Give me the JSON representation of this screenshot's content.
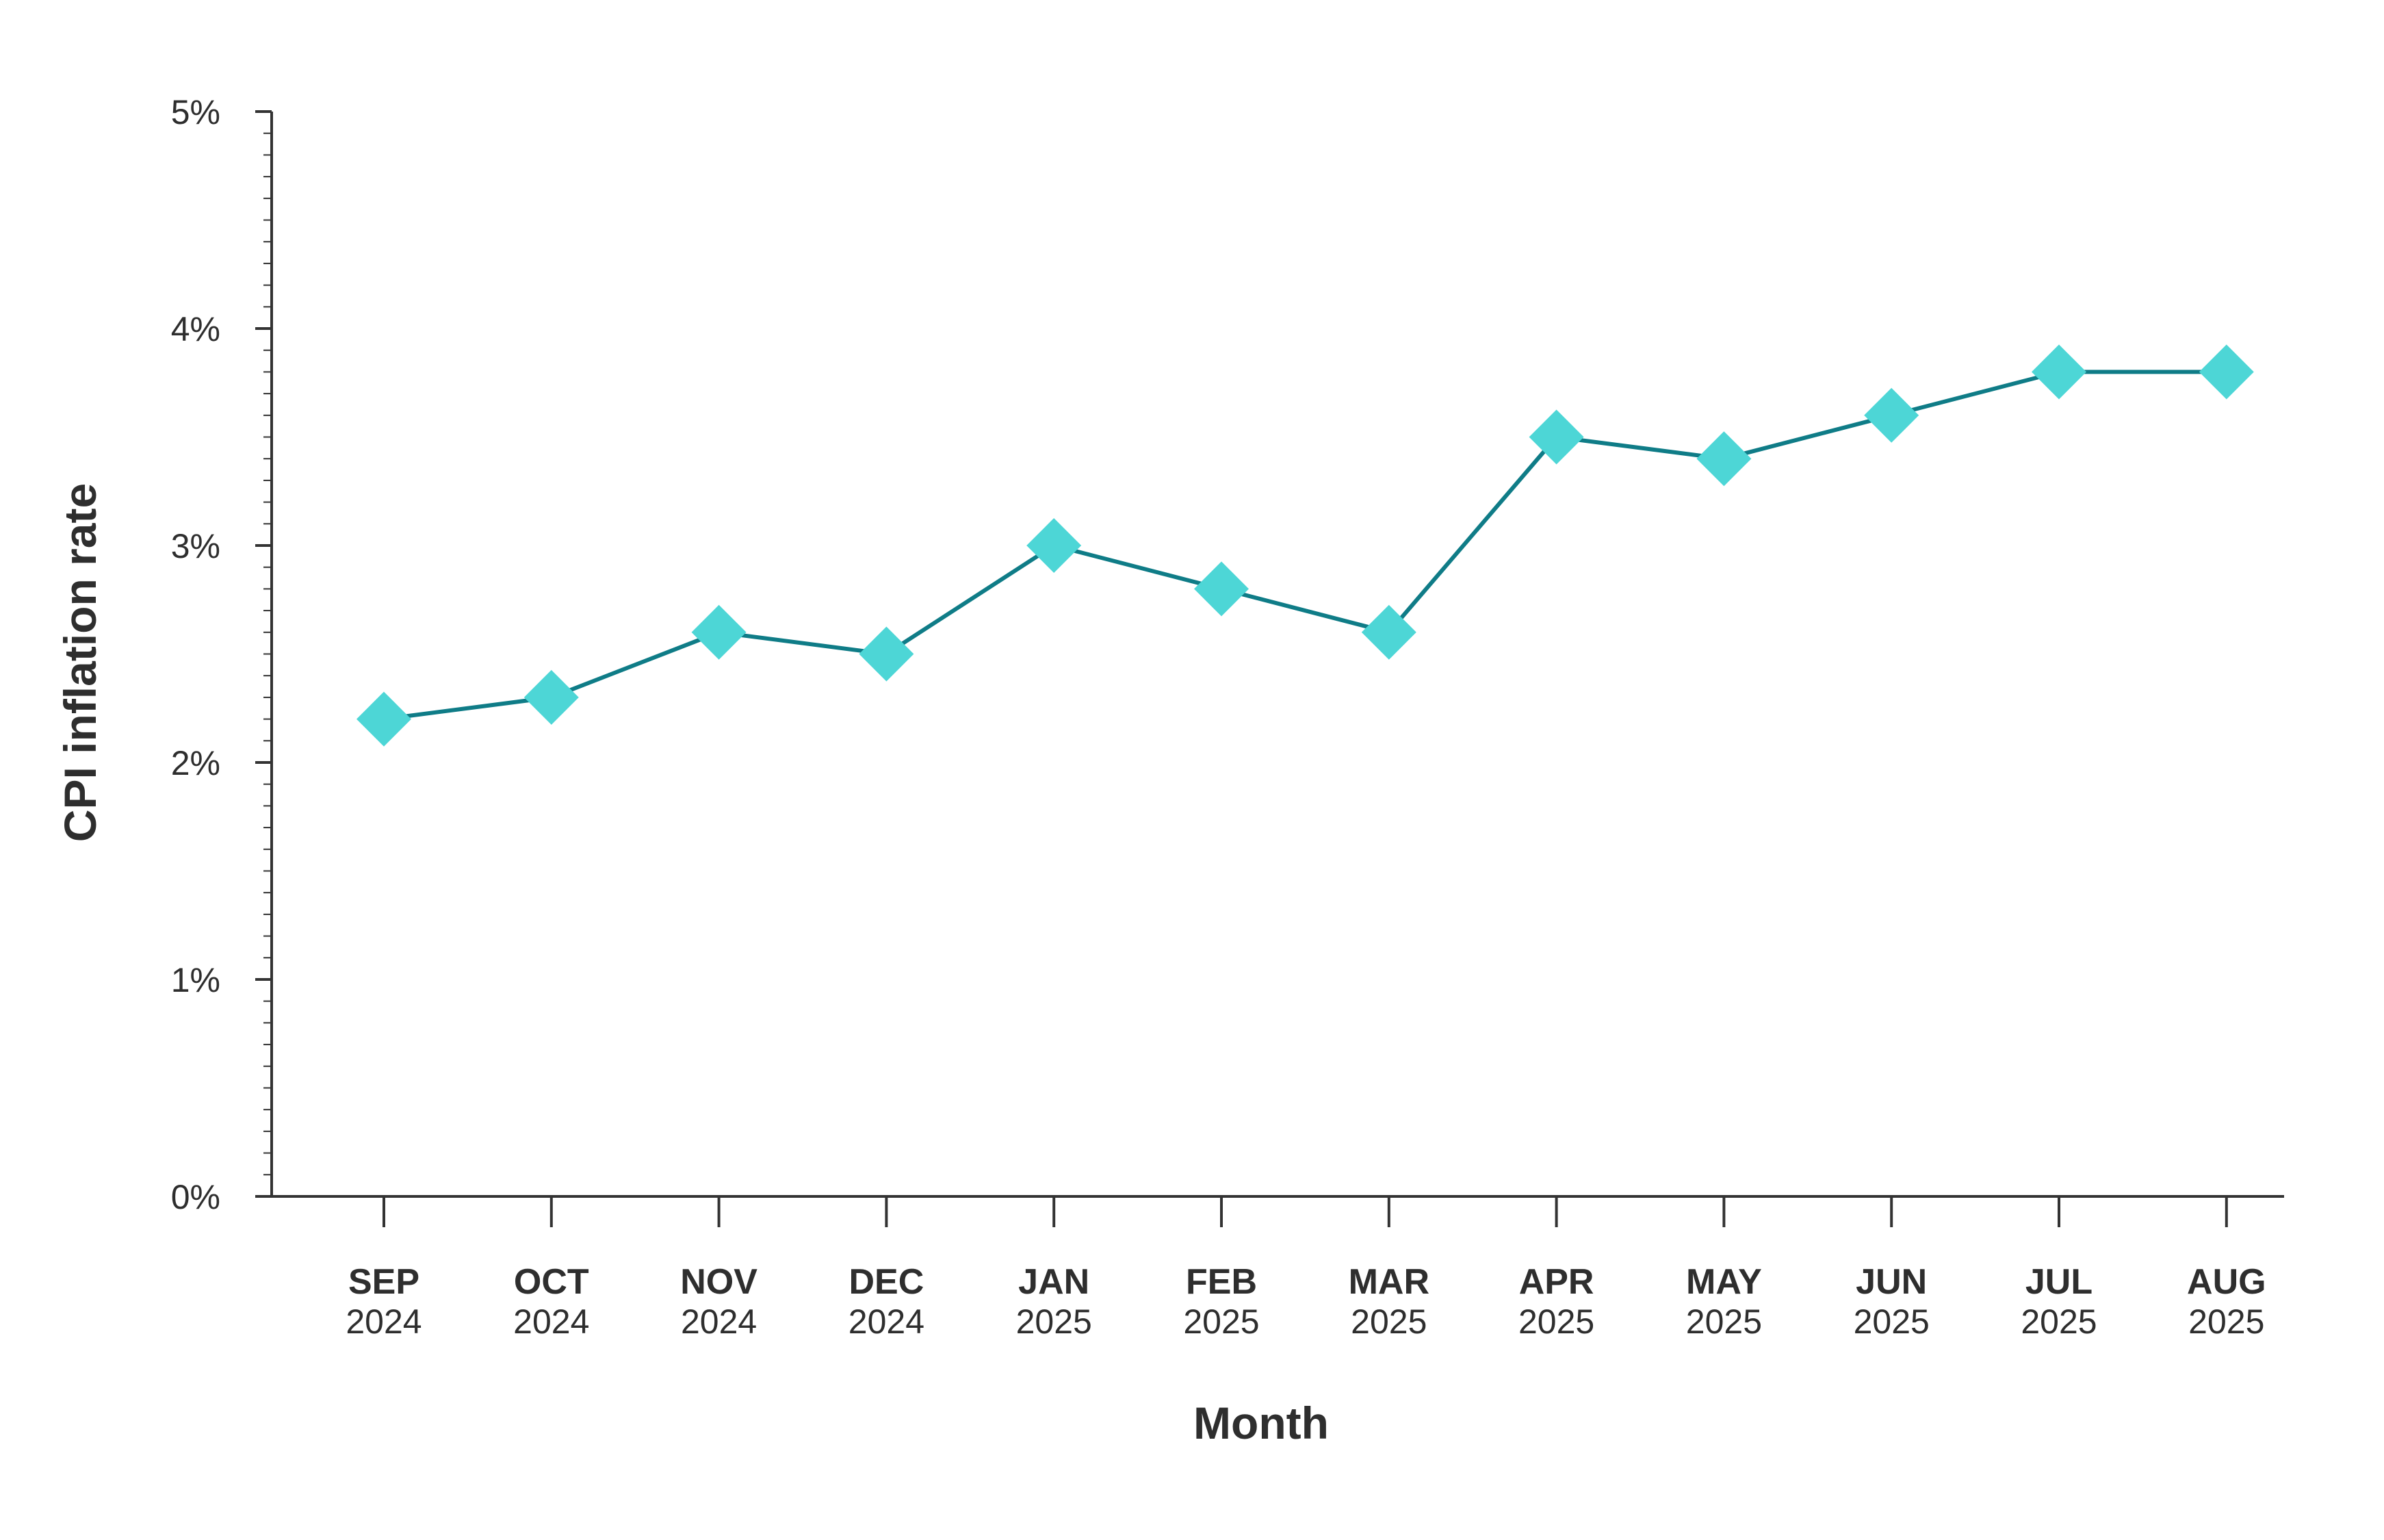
{
  "chart_data": {
    "type": "line",
    "xlabel": "Month",
    "ylabel": "CPI inflation rate",
    "ylim": [
      0,
      5
    ],
    "y_ticks": [
      "0%",
      "1%",
      "2%",
      "3%",
      "4%",
      "5%"
    ],
    "categories": [
      {
        "month": "SEP",
        "year": "2024"
      },
      {
        "month": "OCT",
        "year": "2024"
      },
      {
        "month": "NOV",
        "year": "2024"
      },
      {
        "month": "DEC",
        "year": "2024"
      },
      {
        "month": "JAN",
        "year": "2025"
      },
      {
        "month": "FEB",
        "year": "2025"
      },
      {
        "month": "MAR",
        "year": "2025"
      },
      {
        "month": "APR",
        "year": "2025"
      },
      {
        "month": "MAY",
        "year": "2025"
      },
      {
        "month": "JUN",
        "year": "2025"
      },
      {
        "month": "JUL",
        "year": "2025"
      },
      {
        "month": "AUG",
        "year": "2025"
      }
    ],
    "series": [
      {
        "values": [
          2.2,
          2.3,
          2.6,
          2.5,
          3.0,
          2.8,
          2.6,
          3.5,
          3.4,
          3.6,
          3.8,
          3.8
        ],
        "line_color": "#0f7c87",
        "marker_color": "#4dd6d6",
        "marker": "diamond"
      }
    ],
    "grid": false,
    "legend": "none"
  }
}
